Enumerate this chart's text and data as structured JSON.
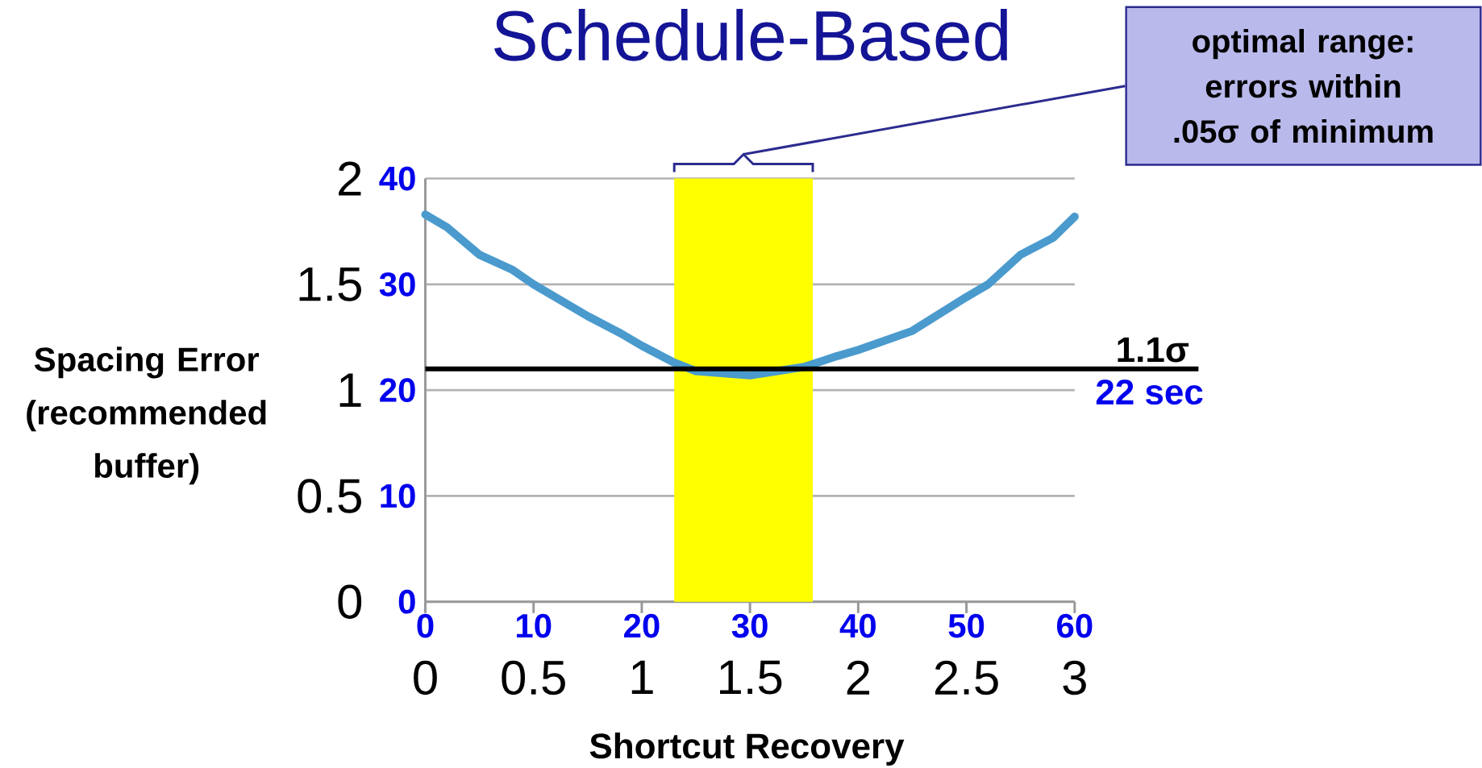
{
  "chart_data": {
    "type": "line",
    "title": "Schedule-Based",
    "xlabel": "Shortcut Recovery",
    "ylabel": "Spacing Error (recommended buffer)",
    "x": [
      0,
      0.1,
      0.25,
      0.4,
      0.5,
      0.75,
      0.9,
      1.0,
      1.15,
      1.25,
      1.5,
      1.75,
      1.9,
      2.0,
      2.25,
      2.5,
      2.6,
      2.75,
      2.9,
      3.0
    ],
    "series": [
      {
        "color": "#4a9acd",
        "values": [
          1.83,
          1.77,
          1.64,
          1.57,
          1.5,
          1.35,
          1.27,
          1.21,
          1.13,
          1.09,
          1.07,
          1.11,
          1.16,
          1.19,
          1.28,
          1.44,
          1.5,
          1.64,
          1.72,
          1.82
        ]
      }
    ],
    "xlim": [
      0,
      3
    ],
    "xticks": [
      0,
      0.5,
      1,
      1.5,
      2,
      2.5,
      3
    ],
    "ylim": [
      0,
      2
    ],
    "yticks": [
      0,
      0.5,
      1,
      1.5,
      2
    ],
    "x2lim": [
      0,
      60
    ],
    "x2ticks": [
      0,
      10,
      20,
      30,
      40,
      50,
      60
    ],
    "y2lim": [
      0,
      40
    ],
    "y2ticks": [
      0,
      10,
      20,
      30,
      40
    ],
    "grid": "y",
    "bands": [
      {
        "axis": "x",
        "from": 1.15,
        "to": 1.79,
        "color": "#ffff00"
      }
    ],
    "ref_lines": [
      {
        "axis": "y",
        "value": 1.1,
        "label": "1.1σ",
        "color": "#000000"
      }
    ],
    "annotations": [
      "optimal range: errors within .05σ of minimum",
      "22 sec"
    ]
  }
}
